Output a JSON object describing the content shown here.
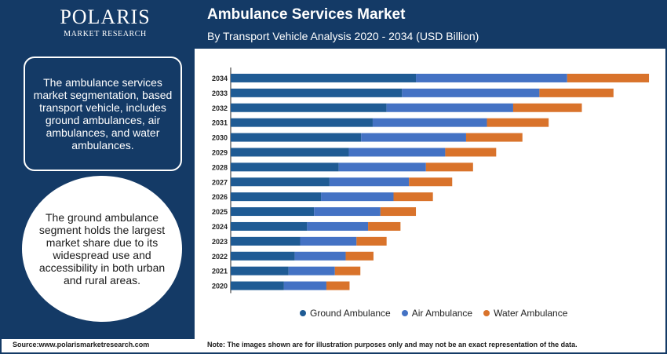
{
  "brand": {
    "name": "POLARIS",
    "subtitle": "MARKET RESEARCH"
  },
  "header": {
    "title": "Ambulance Services Market",
    "subtitle": "By Transport Vehicle Analysis 2020 - 2034 (USD Billion)"
  },
  "sidebar": {
    "info_text": "The ambulance services market segmentation, based transport vehicle, includes ground ambulances, air ambulances, and water ambulances.",
    "highlight_text": "The ground ambulance segment holds the largest market share due to its widespread use and accessibility in both urban and rural areas."
  },
  "footer": {
    "source": "Source:www.polarismarketresearch.com",
    "note": "Note: The images shown are for illustration purposes only and may not be an exact representation of the data."
  },
  "colors": {
    "navy": "#143a66",
    "ground": "#1f5b94",
    "air": "#4472c4",
    "water": "#d9732b"
  },
  "chart_data": {
    "type": "bar",
    "orientation": "horizontal",
    "stacked": true,
    "categories": [
      "2034",
      "2033",
      "2032",
      "2031",
      "2030",
      "2029",
      "2028",
      "2027",
      "2026",
      "2025",
      "2024",
      "2023",
      "2022",
      "2021",
      "2020"
    ],
    "series": [
      {
        "name": "Ground Ambulance",
        "values": [
          24.0,
          22.2,
          20.2,
          18.4,
          16.9,
          15.3,
          14.0,
          12.8,
          11.7,
          10.8,
          9.9,
          9.0,
          8.3,
          7.5,
          6.9
        ]
      },
      {
        "name": "Air Ambulance",
        "values": [
          19.6,
          17.8,
          16.4,
          14.8,
          13.6,
          12.5,
          11.3,
          10.3,
          9.4,
          8.6,
          7.9,
          7.3,
          6.6,
          6.0,
          5.5
        ]
      },
      {
        "name": "Water Ambulance",
        "values": [
          10.6,
          9.6,
          8.9,
          8.0,
          7.3,
          6.6,
          6.1,
          5.6,
          5.1,
          4.6,
          4.2,
          3.9,
          3.6,
          3.3,
          3.0
        ]
      }
    ],
    "xlim": [
      0,
      54.5
    ],
    "grid": false,
    "legend_position": "bottom",
    "xlabel": "",
    "ylabel": ""
  }
}
